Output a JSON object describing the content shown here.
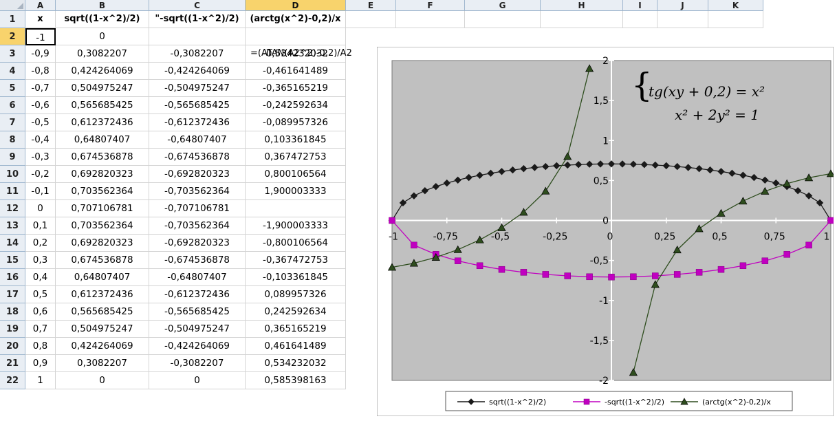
{
  "columns": [
    "A",
    "B",
    "C",
    "D",
    "E",
    "F",
    "G",
    "H",
    "I",
    "J",
    "K"
  ],
  "selected_column": "D",
  "selected_row": 2,
  "headers_row": {
    "A": "x",
    "B": "sqrt((1-x^2)/2)",
    "C": "\"-sqrt((1-x^2)/2)",
    "D": "(arctg(x^2)-0,2)/x"
  },
  "active_cell_formula": "=(ATAN(A2^2)-0,2)/A2",
  "rows": [
    {
      "n": "2",
      "a": "-1",
      "b": "0",
      "c": "",
      "d": ""
    },
    {
      "n": "3",
      "a": "-0,9",
      "b": "0,3082207",
      "c": "-0,3082207",
      "d": "-0,534232032"
    },
    {
      "n": "4",
      "a": "-0,8",
      "b": "0,424264069",
      "c": "-0,424264069",
      "d": "-0,461641489"
    },
    {
      "n": "5",
      "a": "-0,7",
      "b": "0,504975247",
      "c": "-0,504975247",
      "d": "-0,365165219"
    },
    {
      "n": "6",
      "a": "-0,6",
      "b": "0,565685425",
      "c": "-0,565685425",
      "d": "-0,242592634"
    },
    {
      "n": "7",
      "a": "-0,5",
      "b": "0,612372436",
      "c": "-0,612372436",
      "d": "-0,089957326"
    },
    {
      "n": "8",
      "a": "-0,4",
      "b": "0,64807407",
      "c": "-0,64807407",
      "d": "0,103361845"
    },
    {
      "n": "9",
      "a": "-0,3",
      "b": "0,674536878",
      "c": "-0,674536878",
      "d": "0,367472753"
    },
    {
      "n": "10",
      "a": "-0,2",
      "b": "0,692820323",
      "c": "-0,692820323",
      "d": "0,800106564"
    },
    {
      "n": "11",
      "a": "-0,1",
      "b": "0,703562364",
      "c": "-0,703562364",
      "d": "1,900003333"
    },
    {
      "n": "12",
      "a": "0",
      "b": "0,707106781",
      "c": "-0,707106781",
      "d": ""
    },
    {
      "n": "13",
      "a": "0,1",
      "b": "0,703562364",
      "c": "-0,703562364",
      "d": "-1,900003333"
    },
    {
      "n": "14",
      "a": "0,2",
      "b": "0,692820323",
      "c": "-0,692820323",
      "d": "-0,800106564"
    },
    {
      "n": "15",
      "a": "0,3",
      "b": "0,674536878",
      "c": "-0,674536878",
      "d": "-0,367472753"
    },
    {
      "n": "16",
      "a": "0,4",
      "b": "0,64807407",
      "c": "-0,64807407",
      "d": "-0,103361845"
    },
    {
      "n": "17",
      "a": "0,5",
      "b": "0,612372436",
      "c": "-0,612372436",
      "d": "0,089957326"
    },
    {
      "n": "18",
      "a": "0,6",
      "b": "0,565685425",
      "c": "-0,565685425",
      "d": "0,242592634"
    },
    {
      "n": "19",
      "a": "0,7",
      "b": "0,504975247",
      "c": "-0,504975247",
      "d": "0,365165219"
    },
    {
      "n": "20",
      "a": "0,8",
      "b": "0,424264069",
      "c": "-0,424264069",
      "d": "0,461641489"
    },
    {
      "n": "21",
      "a": "0,9",
      "b": "0,3082207",
      "c": "-0,3082207",
      "d": "0,534232032"
    },
    {
      "n": "22",
      "a": "1",
      "b": "0",
      "c": "0",
      "d": "0,585398163"
    }
  ],
  "chart_data": {
    "type": "scatter",
    "xlim": [
      -1,
      1
    ],
    "ylim": [
      -2,
      2
    ],
    "plot_background": "#c0c0c0",
    "x_tick_labels": [
      "-1",
      "-0,75",
      "-0,5",
      "-0,25",
      "0",
      "0,25",
      "0,5",
      "0,75",
      "1"
    ],
    "x_ticks": [
      -1,
      -0.75,
      -0.5,
      -0.25,
      0,
      0.25,
      0.5,
      0.75,
      1
    ],
    "y_tick_labels": [
      "2",
      "1,5",
      "1",
      "0,5",
      "0",
      "-0,5",
      "-1",
      "-1,5",
      "-2"
    ],
    "y_ticks": [
      2,
      1.5,
      1,
      0.5,
      0,
      -0.5,
      -1,
      -1.5,
      -2
    ],
    "annotation_line1": "tg(xy + 0,2) = x²",
    "annotation_line2": "x² + 2y² = 1",
    "legend_position": "bottom",
    "series": [
      {
        "name": "sqrt((1-x^2)/2)",
        "color": "#1a1a1a",
        "marker": "diamond",
        "x": [
          -1,
          -0.95,
          -0.9,
          -0.85,
          -0.8,
          -0.75,
          -0.7,
          -0.65,
          -0.6,
          -0.55,
          -0.5,
          -0.45,
          -0.4,
          -0.35,
          -0.3,
          -0.25,
          -0.2,
          -0.15,
          -0.1,
          -0.05,
          0,
          0.05,
          0.1,
          0.15,
          0.2,
          0.25,
          0.3,
          0.35,
          0.4,
          0.45,
          0.5,
          0.55,
          0.6,
          0.65,
          0.7,
          0.75,
          0.8,
          0.85,
          0.9,
          0.95,
          1
        ],
        "y": [
          0,
          0.2208,
          0.3082,
          0.3725,
          0.4243,
          0.4677,
          0.505,
          0.5373,
          0.5657,
          0.5906,
          0.6124,
          0.6315,
          0.6481,
          0.6624,
          0.6745,
          0.6847,
          0.6928,
          0.6991,
          0.7036,
          0.7062,
          0.7071,
          0.7062,
          0.7036,
          0.6991,
          0.6928,
          0.6847,
          0.6745,
          0.6624,
          0.6481,
          0.6315,
          0.6124,
          0.5906,
          0.5657,
          0.5373,
          0.505,
          0.4677,
          0.4243,
          0.3725,
          0.3082,
          0.2208,
          0
        ]
      },
      {
        "name": "-sqrt((1-x^2)/2)",
        "color": "#c000c0",
        "marker": "square",
        "x": [
          -1,
          -0.9,
          -0.8,
          -0.7,
          -0.6,
          -0.5,
          -0.4,
          -0.3,
          -0.2,
          -0.1,
          0,
          0.1,
          0.2,
          0.3,
          0.4,
          0.5,
          0.6,
          0.7,
          0.8,
          0.9,
          1
        ],
        "y": [
          0,
          -0.3082,
          -0.4243,
          -0.505,
          -0.5657,
          -0.6124,
          -0.6481,
          -0.6745,
          -0.6928,
          -0.7036,
          -0.7071,
          -0.7036,
          -0.6928,
          -0.6745,
          -0.6481,
          -0.6124,
          -0.5657,
          -0.505,
          -0.4243,
          -0.3082,
          0
        ]
      },
      {
        "name": "(arctg(x^2)-0,2)/x",
        "color": "#2e4d1e",
        "marker": "triangle",
        "segments": [
          {
            "x": [
              -1,
              -0.9,
              -0.8,
              -0.7,
              -0.6,
              -0.5,
              -0.4,
              -0.3,
              -0.2,
              -0.1
            ],
            "y": [
              -0.5854,
              -0.5342,
              -0.4616,
              -0.3652,
              -0.2426,
              -0.09,
              0.1034,
              0.3675,
              0.8001,
              1.9
            ]
          },
          {
            "x": [
              0.1,
              0.2,
              0.3,
              0.4,
              0.5,
              0.6,
              0.7,
              0.8,
              0.9,
              1
            ],
            "y": [
              -1.9,
              -0.8001,
              -0.3675,
              -0.1034,
              0.09,
              0.2426,
              0.3652,
              0.4616,
              0.5342,
              0.5854
            ]
          }
        ]
      }
    ]
  }
}
